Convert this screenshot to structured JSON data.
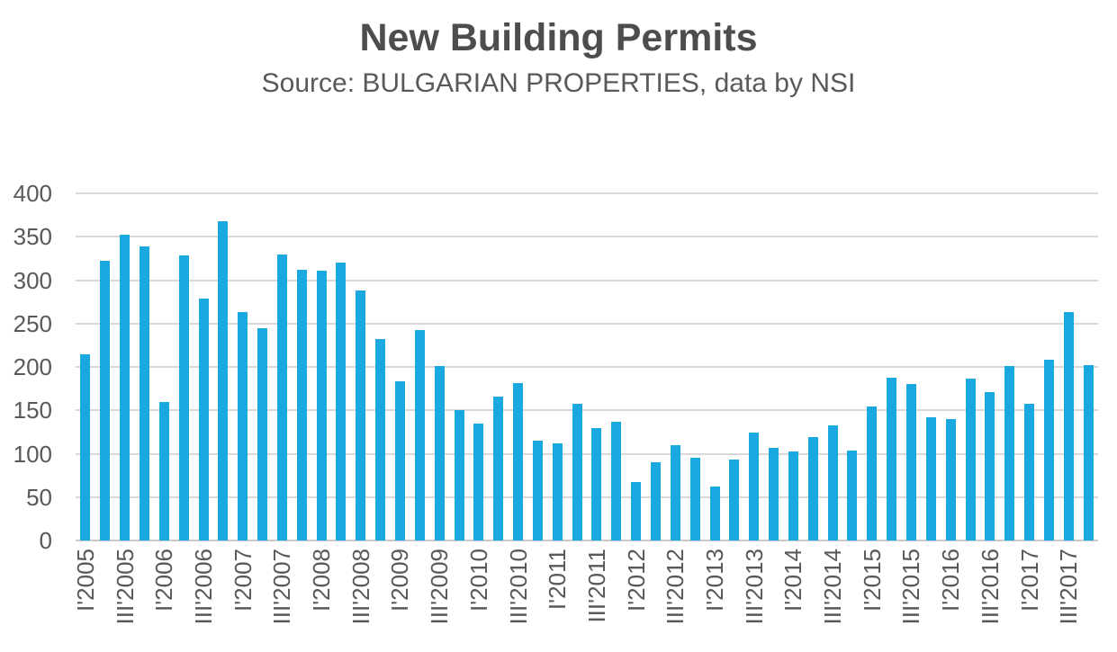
{
  "header": {
    "title": "New Building Permits",
    "subtitle": "Source: BULGARIAN PROPERTIES, data by NSI"
  },
  "chart_data": {
    "type": "bar",
    "title": "New Building Permits",
    "subtitle": "Source: BULGARIAN PROPERTIES, data by NSI",
    "categories": [
      "I'2005",
      "II'2005",
      "III'2005",
      "IV'2005",
      "I'2006",
      "II'2006",
      "III'2006",
      "IV'2006",
      "I'2007",
      "II'2007",
      "III'2007",
      "IV'2007",
      "I'2008",
      "II'2008",
      "III'2008",
      "IV'2008",
      "I'2009",
      "II'2009",
      "III'2009",
      "IV'2009",
      "I'2010",
      "II'2010",
      "III'2010",
      "IV'2010",
      "I'2011",
      "II'2011",
      "III'2011",
      "IV'2011",
      "I'2012",
      "II'2012",
      "III'2012",
      "IV'2012",
      "I'2013",
      "II'2013",
      "III'2013",
      "IV'2013",
      "I'2014",
      "II'2014",
      "III'2014",
      "IV'2014",
      "I'2015",
      "II'2015",
      "III'2015",
      "IV'2015",
      "I'2016",
      "II'2016",
      "III'2016",
      "IV'2016",
      "I'2017",
      "II'2017",
      "III'2017",
      "IV'2017"
    ],
    "values": [
      215,
      322,
      352,
      339,
      160,
      328,
      279,
      368,
      263,
      245,
      330,
      312,
      311,
      320,
      288,
      232,
      183,
      242,
      201,
      150,
      135,
      166,
      181,
      115,
      112,
      158,
      130,
      137,
      67,
      90,
      110,
      95,
      62,
      93,
      124,
      107,
      103,
      119,
      133,
      104,
      154,
      188,
      180,
      142,
      140,
      187,
      171,
      201,
      158,
      208,
      263,
      202
    ],
    "x_tick_label_every": 2,
    "xlabel": "",
    "ylabel": "",
    "ylim": [
      0,
      400
    ],
    "y_ticks": [
      0,
      50,
      100,
      150,
      200,
      250,
      300,
      350,
      400
    ],
    "grid": "horizontal",
    "legend_position": "none",
    "bar_color": "#1ba8e1",
    "gridline_color": "#d9d9d9",
    "axis_line_color": "#c9c9c9",
    "text_color": "#595959",
    "title_color": "#4d4d4d"
  }
}
